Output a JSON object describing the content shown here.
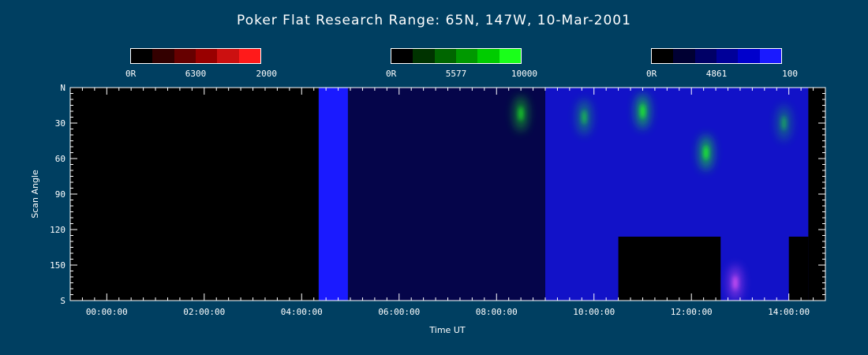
{
  "chart_data": {
    "type": "heatmap",
    "title": "Poker Flat Research Range: 65N, 147W, 10-Mar-2001",
    "xlabel": "Time UT",
    "ylabel": "Scan Angle",
    "x_ticks": [
      "00:00:00",
      "02:00:00",
      "04:00:00",
      "06:00:00",
      "08:00:00",
      "10:00:00",
      "12:00:00",
      "14:00:00"
    ],
    "x_tick_hours": [
      0,
      2,
      4,
      6,
      8,
      10,
      12,
      14
    ],
    "xlim_hours": [
      -0.75,
      14.75
    ],
    "y_ticks": [
      "N",
      "30",
      "60",
      "90",
      "120",
      "150",
      "S"
    ],
    "y_tick_values": [
      0,
      30,
      60,
      90,
      120,
      150,
      180
    ],
    "ylim": [
      0,
      180
    ],
    "colorbars": [
      {
        "wavelength": "6300",
        "min_label": "0R",
        "max_label": "2000",
        "colors": [
          "#000000",
          "#330000",
          "#660000",
          "#990000",
          "#cc1010",
          "#ff1a1a"
        ]
      },
      {
        "wavelength": "5577",
        "min_label": "0R",
        "max_label": "10000",
        "colors": [
          "#000000",
          "#003300",
          "#006600",
          "#009900",
          "#00cc00",
          "#1aff1a"
        ]
      },
      {
        "wavelength": "4861",
        "min_label": "0R",
        "max_label": "100",
        "colors": [
          "#000000",
          "#000033",
          "#000066",
          "#000099",
          "#0000cc",
          "#1a1aff"
        ]
      }
    ],
    "regions": [
      {
        "start_hour": -0.75,
        "end_hour": 4.35,
        "angle_from": 0,
        "angle_to": 180,
        "color": "#000000"
      },
      {
        "start_hour": 4.35,
        "end_hour": 4.95,
        "angle_from": 0,
        "angle_to": 180,
        "color": "#1a1aff"
      },
      {
        "start_hour": 4.95,
        "end_hour": 9.0,
        "angle_from": 0,
        "angle_to": 180,
        "color": "#05054a"
      },
      {
        "start_hour": 9.0,
        "end_hour": 14.4,
        "angle_from": 0,
        "angle_to": 180,
        "color": "#1212c8"
      },
      {
        "start_hour": 10.5,
        "end_hour": 12.6,
        "angle_from": 126,
        "angle_to": 180,
        "color": "#000000"
      },
      {
        "start_hour": 14.0,
        "end_hour": 14.4,
        "angle_from": 126,
        "angle_to": 180,
        "color": "#000000"
      },
      {
        "start_hour": 14.4,
        "end_hour": 14.75,
        "angle_from": 0,
        "angle_to": 180,
        "color": "#000000"
      }
    ],
    "features": [
      {
        "hour": 8.5,
        "angle": 22,
        "color": "#1aff1a",
        "intensity": 0.7
      },
      {
        "hour": 9.8,
        "angle": 25,
        "color": "#1aff1a",
        "intensity": 0.6
      },
      {
        "hour": 11.0,
        "angle": 20,
        "color": "#1aff1a",
        "intensity": 0.9
      },
      {
        "hour": 12.3,
        "angle": 55,
        "color": "#1aff1a",
        "intensity": 0.9
      },
      {
        "hour": 13.9,
        "angle": 30,
        "color": "#1aff1a",
        "intensity": 0.5
      },
      {
        "hour": 12.9,
        "angle": 165,
        "color": "#ff60ff",
        "intensity": 0.7
      }
    ]
  }
}
